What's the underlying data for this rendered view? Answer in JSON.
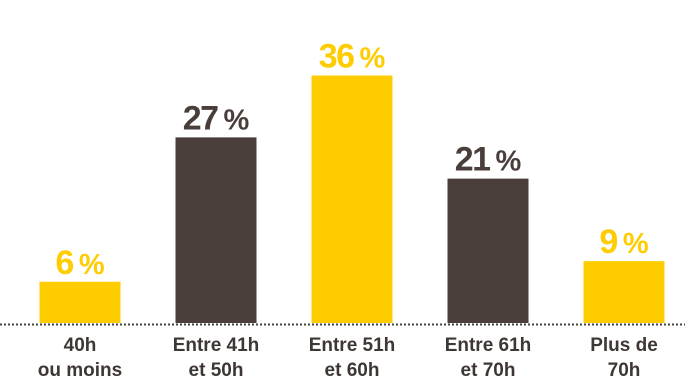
{
  "chart_data": {
    "type": "bar",
    "categories": [
      [
        "40h",
        "ou moins"
      ],
      [
        "Entre 41h",
        "et 50h"
      ],
      [
        "Entre 51h",
        "et 60h"
      ],
      [
        "Entre 61h",
        "et 70h"
      ],
      [
        "Plus de",
        "70h"
      ]
    ],
    "values": [
      6,
      27,
      36,
      21,
      9
    ],
    "value_labels": [
      "6",
      "27",
      "36",
      "21",
      "9"
    ],
    "value_suffix": "%",
    "ylim": [
      0,
      40
    ],
    "grid": false,
    "colors": {
      "yellow": "#ffcc00",
      "dark": "#4a3e3b",
      "axis": "#444444",
      "label": "#3e3734"
    },
    "bar_colors": [
      "yellow",
      "dark",
      "yellow",
      "dark",
      "yellow"
    ]
  }
}
